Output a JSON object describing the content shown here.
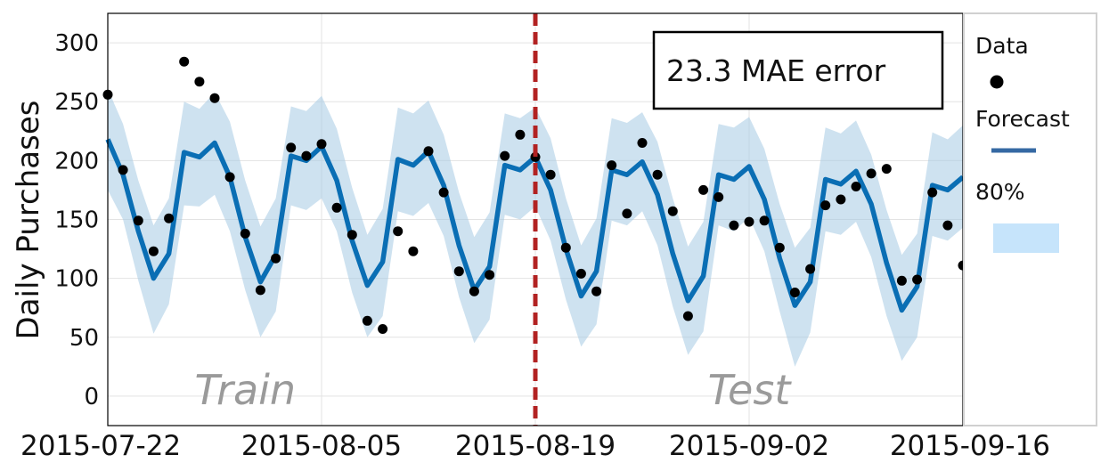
{
  "chart_data": {
    "type": "line",
    "ylabel": "Daily Purchases",
    "ylim": [
      -25,
      325
    ],
    "yticks": [
      0,
      50,
      100,
      150,
      200,
      250,
      300
    ],
    "xlim": [
      "2015-07-22",
      "2015-09-16"
    ],
    "xticks": [
      "2015-07-22",
      "2015-08-05",
      "2015-08-19",
      "2015-09-02",
      "2015-09-16"
    ],
    "grid": true,
    "legend_position": "right",
    "split_date": "2015-08-19",
    "split_color": "#b22222",
    "regions": [
      {
        "label": "Train",
        "center_date": "2015-07-31"
      },
      {
        "label": "Test",
        "center_date": "2015-09-02"
      }
    ],
    "annotation": "23.3 MAE error",
    "legend": {
      "data_label": "Data",
      "forecast_label": "Forecast",
      "interval_label": "80%"
    },
    "colors": {
      "forecast": "#0a6eb4",
      "interval": "#a6cbe3",
      "data": "#000000",
      "legend_forecast": "#3569a3",
      "legend_interval": "#c6e4fb"
    },
    "series": [
      {
        "name": "Forecast",
        "kind": "line",
        "x": [
          "2015-07-22",
          "2015-07-23",
          "2015-07-24",
          "2015-07-25",
          "2015-07-26",
          "2015-07-27",
          "2015-07-28",
          "2015-07-29",
          "2015-07-30",
          "2015-07-31",
          "2015-08-01",
          "2015-08-02",
          "2015-08-03",
          "2015-08-04",
          "2015-08-05",
          "2015-08-06",
          "2015-08-07",
          "2015-08-08",
          "2015-08-09",
          "2015-08-10",
          "2015-08-11",
          "2015-08-12",
          "2015-08-13",
          "2015-08-14",
          "2015-08-15",
          "2015-08-16",
          "2015-08-17",
          "2015-08-18",
          "2015-08-19",
          "2015-08-20",
          "2015-08-21",
          "2015-08-22",
          "2015-08-23",
          "2015-08-24",
          "2015-08-25",
          "2015-08-26",
          "2015-08-27",
          "2015-08-28",
          "2015-08-29",
          "2015-08-30",
          "2015-08-31",
          "2015-09-01",
          "2015-09-02",
          "2015-09-03",
          "2015-09-04",
          "2015-09-05",
          "2015-09-06",
          "2015-09-07",
          "2015-09-08",
          "2015-09-09",
          "2015-09-10",
          "2015-09-11",
          "2015-09-12",
          "2015-09-13",
          "2015-09-14",
          "2015-09-15",
          "2015-09-16"
        ],
        "y": [
          218,
          188,
          140,
          100,
          121,
          207,
          203,
          215,
          186,
          135,
          97,
          120,
          204,
          200,
          212,
          183,
          132,
          94,
          114,
          201,
          196,
          208,
          179,
          128,
          90,
          110,
          196,
          192,
          203,
          175,
          125,
          85,
          106,
          192,
          188,
          199,
          171,
          121,
          81,
          102,
          188,
          184,
          195,
          167,
          117,
          77,
          97,
          184,
          180,
          191,
          163,
          113,
          73,
          93,
          179,
          175,
          186
        ]
      },
      {
        "name": "80%",
        "kind": "band",
        "lower": [
          175,
          150,
          98,
          53,
          78,
          162,
          161,
          171,
          140,
          90,
          50,
          72,
          162,
          158,
          168,
          140,
          88,
          50,
          68,
          157,
          153,
          164,
          136,
          84,
          45,
          65,
          154,
          150,
          161,
          132,
          82,
          42,
          61,
          149,
          145,
          157,
          128,
          76,
          35,
          55,
          145,
          140,
          152,
          123,
          72,
          25,
          54,
          140,
          137,
          148,
          118,
          68,
          30,
          50,
          136,
          132,
          143
        ],
        "upper": [
          261,
          231,
          183,
          145,
          168,
          250,
          244,
          258,
          233,
          183,
          144,
          168,
          246,
          242,
          255,
          227,
          177,
          137,
          159,
          245,
          240,
          251,
          222,
          173,
          135,
          156,
          240,
          236,
          245,
          219,
          168,
          128,
          151,
          236,
          232,
          241,
          216,
          168,
          127,
          148,
          231,
          228,
          237,
          210,
          163,
          126,
          143,
          228,
          223,
          234,
          205,
          158,
          120,
          138,
          224,
          218,
          230
        ]
      },
      {
        "name": "Data",
        "kind": "scatter",
        "x": [
          "2015-07-22",
          "2015-07-23",
          "2015-07-24",
          "2015-07-25",
          "2015-07-26",
          "2015-07-27",
          "2015-07-28",
          "2015-07-29",
          "2015-07-30",
          "2015-07-31",
          "2015-08-01",
          "2015-08-02",
          "2015-08-03",
          "2015-08-04",
          "2015-08-05",
          "2015-08-06",
          "2015-08-07",
          "2015-08-08",
          "2015-08-09",
          "2015-08-10",
          "2015-08-11",
          "2015-08-12",
          "2015-08-13",
          "2015-08-14",
          "2015-08-15",
          "2015-08-16",
          "2015-08-17",
          "2015-08-18",
          "2015-08-19",
          "2015-08-20",
          "2015-08-21",
          "2015-08-22",
          "2015-08-23",
          "2015-08-24",
          "2015-08-25",
          "2015-08-26",
          "2015-08-27",
          "2015-08-28",
          "2015-08-29",
          "2015-08-30",
          "2015-08-31",
          "2015-09-01",
          "2015-09-02",
          "2015-09-03",
          "2015-09-04",
          "2015-09-05",
          "2015-09-06",
          "2015-09-07",
          "2015-09-08",
          "2015-09-09",
          "2015-09-10",
          "2015-09-11",
          "2015-09-12",
          "2015-09-13",
          "2015-09-14",
          "2015-09-15",
          "2015-09-16"
        ],
        "y": [
          256,
          192,
          149,
          123,
          151,
          284,
          267,
          253,
          186,
          138,
          90,
          117,
          211,
          204,
          214,
          160,
          137,
          64,
          57,
          140,
          123,
          208,
          173,
          106,
          89,
          103,
          204,
          222,
          203,
          188,
          126,
          104,
          89,
          196,
          155,
          215,
          188,
          157,
          68,
          175,
          169,
          145,
          148,
          149,
          126,
          88,
          108,
          162,
          167,
          178,
          189,
          193,
          98,
          99,
          173,
          145,
          111
        ]
      }
    ]
  }
}
